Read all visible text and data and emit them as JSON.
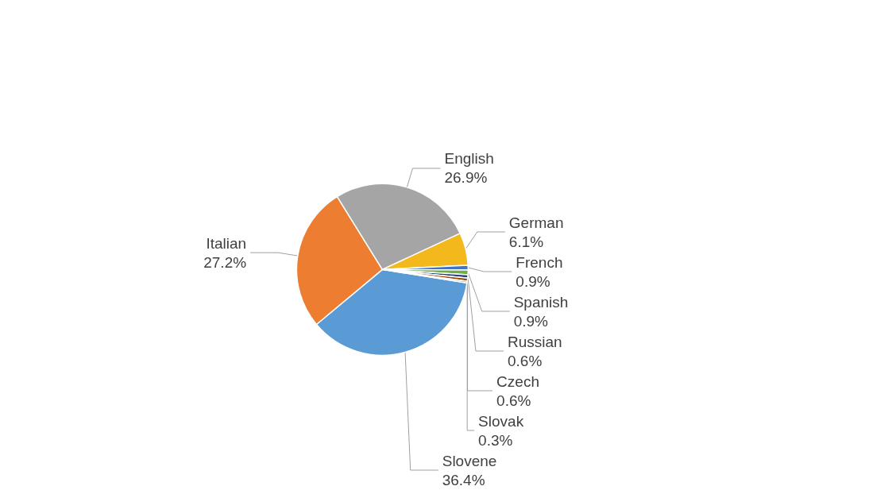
{
  "chart_data": {
    "type": "pie",
    "categories": [
      "Slovene",
      "Italian",
      "English",
      "German",
      "French",
      "Spanish",
      "Russian",
      "Czech",
      "Slovak"
    ],
    "values": [
      36.4,
      27.2,
      26.9,
      6.1,
      0.9,
      0.9,
      0.6,
      0.6,
      0.3
    ],
    "colors": [
      "#5b9bd5",
      "#ed7d31",
      "#a5a5a5",
      "#f2b81c",
      "#4472c4",
      "#70ad47",
      "#264478",
      "#9e480e",
      "#7f7f7f"
    ],
    "value_labels": [
      "36.4%",
      "27.2%",
      "26.9%",
      "6.1%",
      "0.9%",
      "0.9%",
      "0.6%",
      "0.6%",
      "0.3%"
    ],
    "legend": false
  }
}
